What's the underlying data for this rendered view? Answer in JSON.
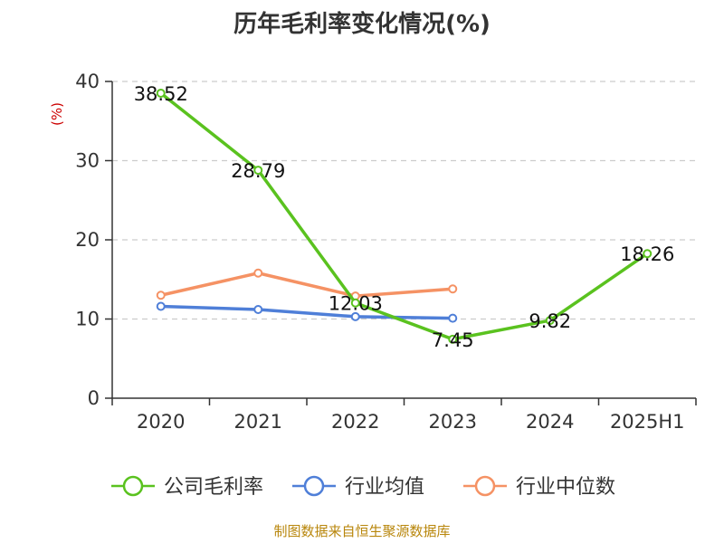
{
  "title": "历年毛利率变化情况(%)",
  "footer": "制图数据来自恒生聚源数据库",
  "chart_data": {
    "type": "line",
    "title": "历年毛利率变化情况(%)",
    "ylabel": "(%)",
    "xlabel": "",
    "categories": [
      "2020",
      "2021",
      "2022",
      "2023",
      "2024",
      "2025H1"
    ],
    "ylim": [
      0,
      40
    ],
    "yticks": [
      0,
      10,
      20,
      30,
      40
    ],
    "grid": "horizontal dashed",
    "legend_position": "bottom",
    "series": [
      {
        "name": "公司毛利率",
        "color": "#5ac21f",
        "values": [
          38.52,
          28.79,
          12.03,
          7.45,
          9.82,
          18.26
        ],
        "labels": [
          "38.52",
          "28.79",
          "12.03",
          "7.45",
          "9.82",
          "18.26"
        ]
      },
      {
        "name": "行业均值",
        "color": "#4f7fd8",
        "values": [
          11.6,
          11.2,
          10.3,
          10.1,
          null,
          null
        ]
      },
      {
        "name": "行业中位数",
        "color": "#f59264",
        "values": [
          13.0,
          15.8,
          12.9,
          13.8,
          null,
          null
        ]
      }
    ]
  }
}
